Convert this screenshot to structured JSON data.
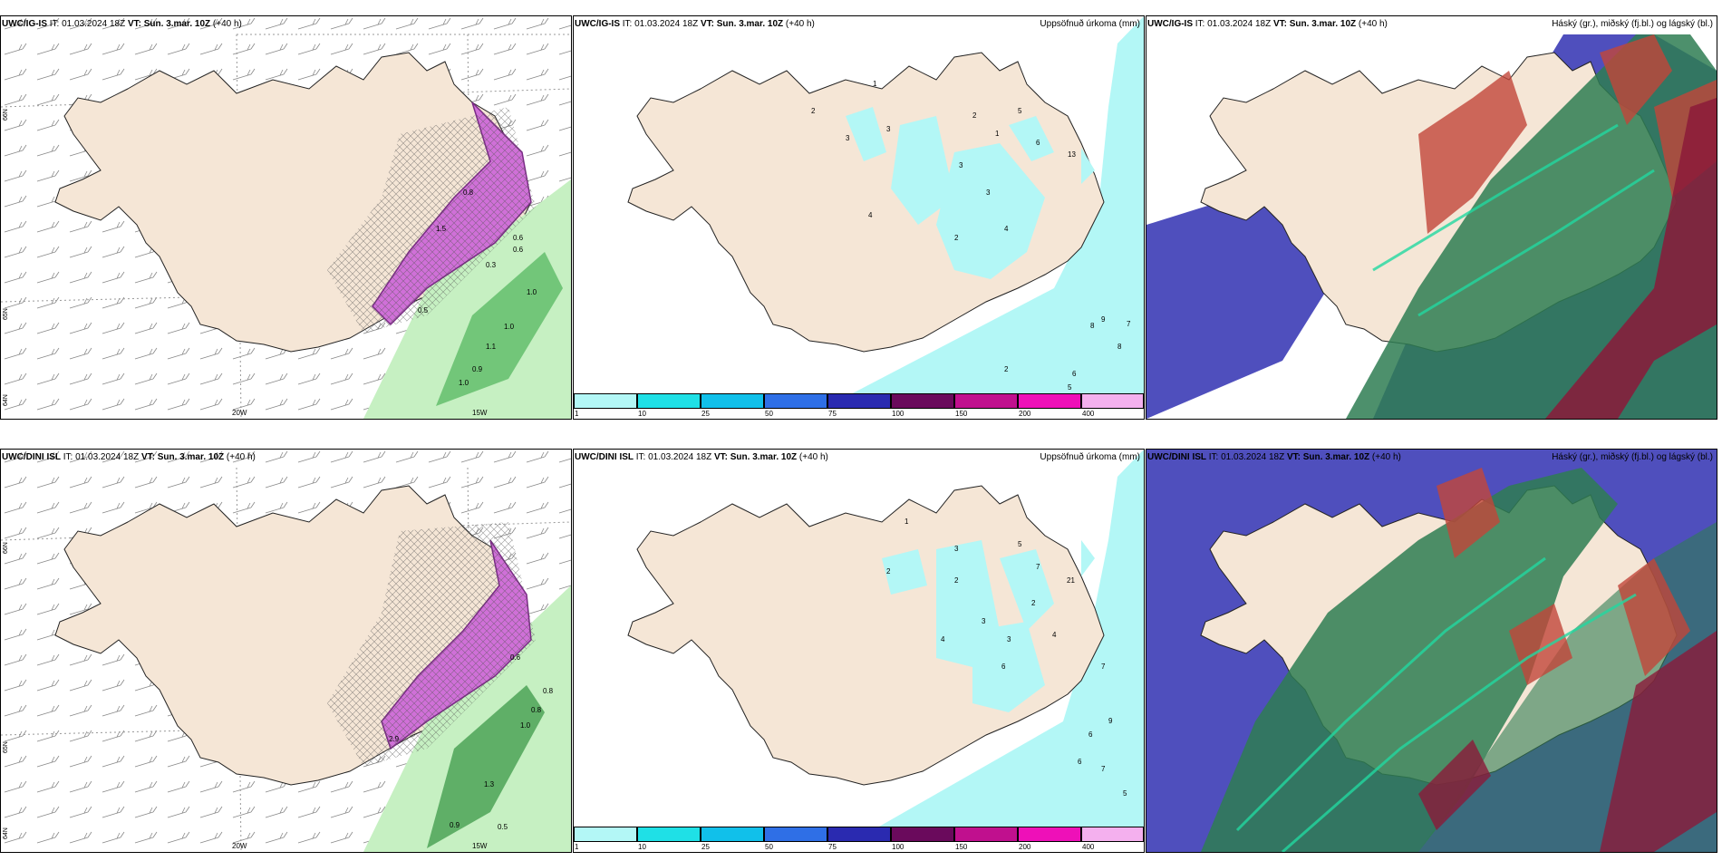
{
  "colors": {
    "land": "#f5e6d6",
    "sea": "#ffffff",
    "precip_light": "#b3f7f6",
    "snow_pink": "#d070d8",
    "green_light": "#c6f0c2",
    "green_dark": "#2f8a3a",
    "cloud_high": "#2e7d52",
    "cloud_mid": "#c2463a",
    "cloud_low": "#4f4fbd",
    "bar_colors": [
      "#b3f7f6",
      "#1fe0e6",
      "#11c0ea",
      "#2f6fe6",
      "#2a2ab0",
      "#6a0a5c",
      "#c0108e",
      "#ee10b8",
      "#f4b0ee"
    ]
  },
  "rows": [
    {
      "model": "UWC/IG-IS",
      "it_label": "IT:",
      "it": "01.03.2024 18Z",
      "vt_label": "VT:",
      "vt": "Sun. 3.mar. 10Z",
      "lead": "(+40 h)",
      "precip_numbers": [
        "1",
        "2",
        "3",
        "3",
        "4",
        "5",
        "2",
        "3",
        "1",
        "6",
        "3",
        "13",
        "4",
        "2",
        "9",
        "7",
        "8",
        "8",
        "6",
        "2",
        "5"
      ],
      "snow_numbers": [
        "0.6",
        "0.6",
        "1.0",
        "1.1",
        "1.0",
        "0.9",
        "1.0",
        "0.5",
        "0.3",
        "1.5",
        "0.8"
      ]
    },
    {
      "model": "UWC/DINI ISL",
      "it_label": "IT:",
      "it": "01.03.2024 18Z",
      "vt_label": "VT:",
      "vt": "Sun. 3.mar. 10Z",
      "lead": "(+40 h)",
      "precip_numbers": [
        "1",
        "2",
        "3",
        "2",
        "5",
        "7",
        "2",
        "3",
        "4",
        "21",
        "4",
        "3",
        "6",
        "7",
        "9",
        "6",
        "6",
        "7",
        "5"
      ],
      "snow_numbers": [
        "0.8",
        "0.8",
        "1.0",
        "1.3",
        "0.9",
        "0.5",
        "0.6",
        "2.9"
      ]
    }
  ],
  "precip_title": "Uppsöfnuð úrkoma (mm)",
  "cloud_title": "Háský (gr.), miðský (fj.bl.) og lágský (bl.)",
  "colorbar_labels": [
    "1",
    "10",
    "25",
    "50",
    "75",
    "100",
    "150",
    "200",
    "400"
  ],
  "lon_labels": [
    "20W",
    "15W"
  ],
  "lat_labels": [
    "66N",
    "65N",
    "64N"
  ]
}
